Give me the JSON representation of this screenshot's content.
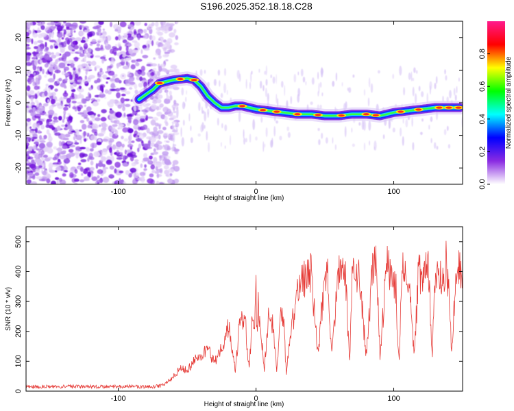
{
  "title": "S196.2025.352.18.18.C28",
  "chart_data": [
    {
      "type": "heatmap",
      "name": "spectrogram",
      "xlabel": "Height of straight line (km)",
      "ylabel": "Frequency (Hz)",
      "xlim": [
        -167,
        150
      ],
      "ylim": [
        -25,
        25
      ],
      "xticks": [
        -100,
        0,
        100
      ],
      "yticks": [
        20,
        10,
        0,
        -10,
        -20
      ],
      "colorbar": {
        "label": "Normalized spectral amplitude",
        "range": [
          0.0,
          1.0
        ],
        "ticks": [
          0.0,
          0.2,
          0.4,
          0.6,
          0.8
        ],
        "colormap": [
          "#ffffff",
          "#8a2be2",
          "#0000ff",
          "#00ffff",
          "#00ff00",
          "#ffff00",
          "#ff0000",
          "#ff1a8c"
        ]
      },
      "ridge": {
        "x": [
          -85,
          -75,
          -70,
          -60,
          -50,
          -45,
          -40,
          -35,
          -30,
          -25,
          -20,
          -15,
          -10,
          0,
          10,
          20,
          30,
          40,
          50,
          60,
          70,
          80,
          90,
          100,
          110,
          120,
          130,
          140,
          148
        ],
        "frequency": [
          1,
          4,
          6,
          7,
          7.5,
          7,
          5,
          2,
          0,
          -1.5,
          -1.5,
          -1,
          -1,
          -2,
          -2.5,
          -3,
          -3.5,
          -3.5,
          -4,
          -4,
          -3.5,
          -3.5,
          -4,
          -3,
          -2.5,
          -2,
          -1.5,
          -1.5,
          -1.5
        ]
      }
    },
    {
      "type": "line",
      "name": "snr",
      "xlabel": "Height of straight line (km)",
      "ylabel": "SNR (10 * v/v)",
      "xlim": [
        -167,
        150
      ],
      "ylim": [
        0,
        550
      ],
      "xticks": [
        -100,
        0,
        100
      ],
      "yticks": [
        0,
        100,
        200,
        300,
        400,
        500
      ],
      "color": "#e53935",
      "series": [
        {
          "name": "SNR",
          "x": [
            -167,
            -150,
            -130,
            -110,
            -90,
            -75,
            -68,
            -62,
            -58,
            -55,
            -50,
            -45,
            -40,
            -35,
            -30,
            -25,
            -20,
            -17,
            -15,
            -12,
            -8,
            -5,
            -3,
            0,
            3,
            6,
            9,
            12,
            15,
            18,
            20,
            22,
            25,
            28,
            30,
            32,
            35,
            40,
            45,
            50,
            52,
            55,
            60,
            65,
            68,
            70,
            75,
            80,
            85,
            88,
            90,
            95,
            100,
            104,
            106,
            110,
            115,
            118,
            120,
            125,
            128,
            130,
            135,
            140,
            142,
            145,
            150
          ],
          "y": [
            15,
            15,
            15,
            15,
            15,
            15,
            18,
            40,
            60,
            75,
            70,
            100,
            125,
            140,
            95,
            150,
            215,
            135,
            65,
            230,
            245,
            70,
            230,
            245,
            225,
            75,
            255,
            225,
            70,
            250,
            240,
            50,
            210,
            245,
            330,
            360,
            380,
            395,
            125,
            370,
            380,
            115,
            400,
            375,
            100,
            415,
            380,
            120,
            420,
            390,
            115,
            420,
            400,
            115,
            440,
            410,
            120,
            400,
            380,
            420,
            120,
            380,
            390,
            385,
            115,
            400,
            420
          ]
        }
      ]
    }
  ]
}
